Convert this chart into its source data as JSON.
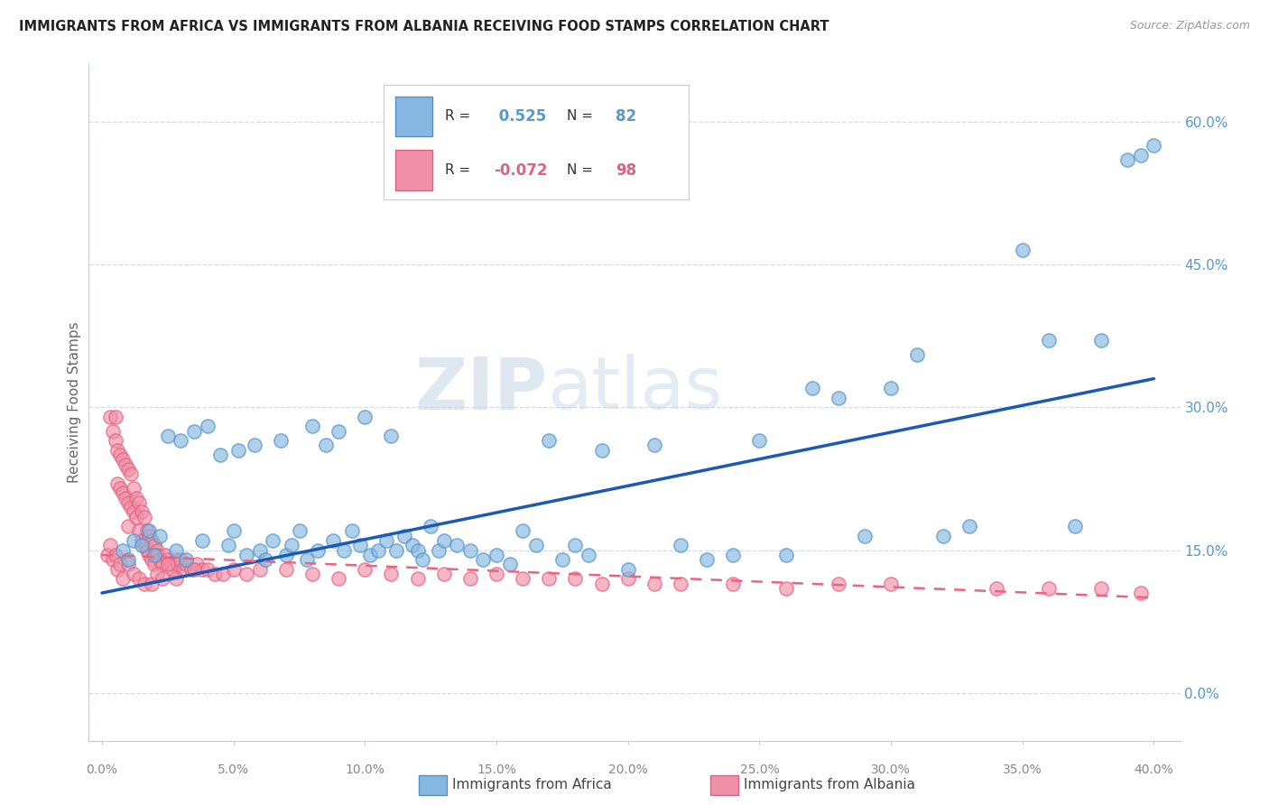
{
  "title": "IMMIGRANTS FROM AFRICA VS IMMIGRANTS FROM ALBANIA RECEIVING FOOD STAMPS CORRELATION CHART",
  "source": "Source: ZipAtlas.com",
  "ylabel": "Receiving Food Stamps",
  "ytick_vals": [
    0.0,
    15.0,
    30.0,
    45.0,
    60.0
  ],
  "xtick_vals": [
    0.0,
    5.0,
    10.0,
    15.0,
    20.0,
    25.0,
    30.0,
    35.0,
    40.0
  ],
  "xlim": [
    -0.5,
    41.0
  ],
  "ylim": [
    -5.0,
    66.0
  ],
  "africa_dot_color": "#85b8e0",
  "albania_dot_color": "#f090a8",
  "africa_line_color": "#1a5ab5",
  "albania_line_color": "#f06080",
  "africa_R": 0.525,
  "africa_N": 82,
  "albania_R": -0.072,
  "albania_N": 98,
  "watermark_zip": "ZIP",
  "watermark_atlas": "atlas",
  "legend_entry1": "Immigrants from Africa",
  "legend_entry2": "Immigrants from Albania",
  "africa_scatter_x": [
    0.8,
    1.0,
    1.2,
    1.5,
    1.8,
    2.0,
    2.2,
    2.5,
    2.8,
    3.0,
    3.2,
    3.5,
    3.8,
    4.0,
    4.5,
    4.8,
    5.0,
    5.2,
    5.5,
    5.8,
    6.0,
    6.2,
    6.5,
    6.8,
    7.0,
    7.2,
    7.5,
    7.8,
    8.0,
    8.2,
    8.5,
    8.8,
    9.0,
    9.2,
    9.5,
    9.8,
    10.0,
    10.2,
    10.5,
    10.8,
    11.0,
    11.2,
    11.5,
    11.8,
    12.0,
    12.2,
    12.5,
    12.8,
    13.0,
    13.5,
    14.0,
    14.5,
    15.0,
    15.5,
    16.0,
    16.5,
    17.0,
    17.5,
    18.0,
    18.5,
    19.0,
    20.0,
    21.0,
    22.0,
    23.0,
    24.0,
    25.0,
    26.0,
    27.0,
    28.0,
    29.0,
    30.0,
    31.0,
    32.0,
    33.0,
    35.0,
    36.0,
    37.0,
    38.0,
    39.0,
    39.5,
    40.0
  ],
  "africa_scatter_y": [
    15.0,
    14.0,
    16.0,
    15.5,
    17.0,
    14.5,
    16.5,
    27.0,
    15.0,
    26.5,
    14.0,
    27.5,
    16.0,
    28.0,
    25.0,
    15.5,
    17.0,
    25.5,
    14.5,
    26.0,
    15.0,
    14.0,
    16.0,
    26.5,
    14.5,
    15.5,
    17.0,
    14.0,
    28.0,
    15.0,
    26.0,
    16.0,
    27.5,
    15.0,
    17.0,
    15.5,
    29.0,
    14.5,
    15.0,
    16.0,
    27.0,
    15.0,
    16.5,
    15.5,
    15.0,
    14.0,
    17.5,
    15.0,
    16.0,
    15.5,
    15.0,
    14.0,
    14.5,
    13.5,
    17.0,
    15.5,
    26.5,
    14.0,
    15.5,
    14.5,
    25.5,
    13.0,
    26.0,
    15.5,
    14.0,
    14.5,
    26.5,
    14.5,
    32.0,
    31.0,
    16.5,
    32.0,
    35.5,
    16.5,
    17.5,
    46.5,
    37.0,
    17.5,
    37.0,
    56.0,
    56.5,
    57.5
  ],
  "albania_scatter_x": [
    0.2,
    0.3,
    0.4,
    0.5,
    0.5,
    0.6,
    0.6,
    0.7,
    0.7,
    0.8,
    0.8,
    0.9,
    0.9,
    1.0,
    1.0,
    1.0,
    1.1,
    1.1,
    1.2,
    1.2,
    1.3,
    1.3,
    1.4,
    1.4,
    1.5,
    1.5,
    1.6,
    1.6,
    1.7,
    1.7,
    1.8,
    1.8,
    1.9,
    1.9,
    2.0,
    2.0,
    2.1,
    2.1,
    2.2,
    2.3,
    2.4,
    2.5,
    2.6,
    2.7,
    2.8,
    2.9,
    3.0,
    3.1,
    3.2,
    3.4,
    3.6,
    3.8,
    4.0,
    4.3,
    4.6,
    5.0,
    5.5,
    6.0,
    7.0,
    8.0,
    9.0,
    10.0,
    11.0,
    12.0,
    13.0,
    14.0,
    15.0,
    16.0,
    17.0,
    18.0,
    19.0,
    20.0,
    21.0,
    22.0,
    24.0,
    26.0,
    28.0,
    30.0,
    34.0,
    36.0,
    38.0,
    39.5,
    0.3,
    0.4,
    0.5,
    0.6,
    0.7,
    0.8,
    1.0,
    1.2,
    1.4,
    1.6,
    1.9,
    2.1,
    2.3,
    2.5,
    2.8,
    3.5
  ],
  "albania_scatter_y": [
    14.5,
    29.0,
    27.5,
    29.0,
    26.5,
    25.5,
    22.0,
    25.0,
    21.5,
    24.5,
    21.0,
    24.0,
    20.5,
    23.5,
    20.0,
    17.5,
    23.0,
    19.5,
    21.5,
    19.0,
    20.5,
    18.5,
    20.0,
    17.0,
    19.0,
    16.0,
    18.5,
    15.5,
    17.0,
    15.0,
    16.5,
    14.5,
    16.0,
    14.0,
    15.5,
    13.5,
    15.0,
    14.5,
    14.0,
    13.5,
    14.5,
    14.0,
    13.5,
    13.0,
    14.0,
    13.5,
    14.0,
    13.0,
    13.5,
    13.0,
    13.5,
    13.0,
    13.0,
    12.5,
    12.5,
    13.0,
    12.5,
    13.0,
    13.0,
    12.5,
    12.0,
    13.0,
    12.5,
    12.0,
    12.5,
    12.0,
    12.5,
    12.0,
    12.0,
    12.0,
    11.5,
    12.0,
    11.5,
    11.5,
    11.5,
    11.0,
    11.5,
    11.5,
    11.0,
    11.0,
    11.0,
    10.5,
    15.5,
    14.0,
    14.5,
    13.0,
    13.5,
    12.0,
    13.5,
    12.5,
    12.0,
    11.5,
    11.5,
    12.5,
    12.0,
    13.5,
    12.0,
    13.0
  ],
  "africa_line_x": [
    0.0,
    40.0
  ],
  "africa_line_y_start": 10.5,
  "africa_line_y_end": 33.0,
  "albania_line_x": [
    0.0,
    40.0
  ],
  "albania_line_y_start": 14.5,
  "albania_line_y_end": 10.0,
  "grid_color": "#d0dce8",
  "spine_color": "#c0ccd8",
  "tick_color_x": "#888888",
  "tick_color_y_right": "#5599cc",
  "background_color": "#ffffff",
  "dot_size": 120,
  "dot_alpha": 0.65,
  "dot_linewidth": 1.2,
  "africa_dot_edge": "#5090c8",
  "albania_dot_edge": "#e06080"
}
